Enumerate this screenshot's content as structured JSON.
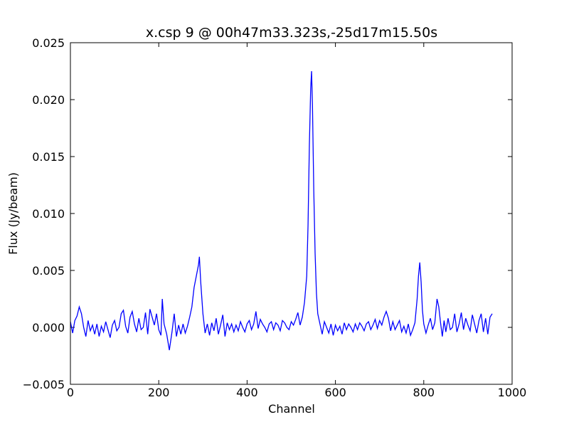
{
  "chart_data": {
    "type": "line",
    "title": "x.csp 9 @ 00h47m33.323s,-25d17m15.50s",
    "x_label": "Channel",
    "y_label": "Flux (Jy/beam)",
    "color": "#0000ff",
    "grid": false,
    "xlim": [
      0,
      1000
    ],
    "xticks": [
      0,
      200,
      400,
      600,
      800,
      1000
    ],
    "ylim": [
      -0.005,
      0.025
    ],
    "yticks": [
      {
        "value": -0.005,
        "label": "−0.005"
      },
      {
        "value": 0,
        "label": "0.000"
      },
      0.005,
      {
        "value": 0.01,
        "label": "0.010"
      },
      0.015,
      {
        "value": 0.02,
        "label": "0.020"
      },
      0.025
    ],
    "x": [
      0,
      5,
      10,
      15,
      20,
      25,
      30,
      35,
      40,
      45,
      50,
      55,
      60,
      65,
      70,
      75,
      80,
      85,
      90,
      95,
      100,
      105,
      110,
      115,
      120,
      125,
      130,
      135,
      140,
      145,
      150,
      155,
      160,
      165,
      170,
      175,
      180,
      185,
      190,
      195,
      200,
      205,
      208,
      212,
      218,
      224,
      230,
      235,
      240,
      245,
      250,
      255,
      260,
      265,
      270,
      275,
      280,
      285,
      290,
      292,
      295,
      300,
      305,
      310,
      315,
      320,
      325,
      330,
      335,
      340,
      345,
      350,
      355,
      360,
      365,
      370,
      375,
      380,
      385,
      390,
      395,
      400,
      405,
      410,
      415,
      420,
      425,
      430,
      435,
      440,
      445,
      450,
      455,
      460,
      465,
      470,
      475,
      480,
      485,
      490,
      495,
      500,
      505,
      510,
      515,
      520,
      525,
      530,
      535,
      538,
      541,
      544,
      546,
      548,
      551,
      554,
      557,
      560,
      565,
      570,
      575,
      580,
      585,
      590,
      595,
      600,
      605,
      610,
      615,
      620,
      625,
      630,
      635,
      640,
      645,
      650,
      655,
      660,
      665,
      670,
      675,
      680,
      685,
      690,
      695,
      700,
      705,
      710,
      715,
      720,
      725,
      730,
      735,
      740,
      745,
      750,
      755,
      760,
      765,
      770,
      775,
      780,
      785,
      788,
      791,
      794,
      797,
      800,
      805,
      810,
      815,
      820,
      825,
      830,
      834,
      838,
      842,
      846,
      850,
      855,
      860,
      865,
      870,
      875,
      880,
      885,
      890,
      895,
      900,
      905,
      910,
      915,
      920,
      925,
      930,
      935,
      940,
      945,
      950,
      955
    ],
    "values": [
      0.0005,
      -0.0005,
      0.0006,
      0.001,
      0.0018,
      0.0012,
      0.0,
      -0.0008,
      0.0006,
      -0.0003,
      0.0002,
      -0.0006,
      0.0003,
      -0.0008,
      0.0001,
      -0.0004,
      0.0005,
      -0.0002,
      -0.0009,
      0.0002,
      0.0006,
      -0.0003,
      0.0,
      0.0012,
      0.0015,
      0.0001,
      -0.0005,
      0.0009,
      0.0014,
      0.0003,
      -0.0004,
      0.0008,
      -0.0002,
      0.0,
      0.0013,
      -0.0006,
      0.0016,
      0.0009,
      0.0002,
      0.0012,
      -0.0002,
      -0.0007,
      0.0025,
      0.0003,
      -0.0006,
      -0.002,
      -0.0004,
      0.0012,
      -0.0008,
      0.0002,
      -0.0006,
      0.0003,
      -0.0005,
      0.0001,
      0.0009,
      0.0018,
      0.0035,
      0.0045,
      0.0055,
      0.0062,
      0.004,
      0.0012,
      -0.0005,
      0.0003,
      -0.0007,
      0.0004,
      -0.0003,
      0.0008,
      -0.0006,
      0.0002,
      0.0011,
      -0.0008,
      0.0004,
      -0.0002,
      0.0003,
      -0.0004,
      0.0002,
      -0.0003,
      0.0005,
      0.0,
      -0.0004,
      0.0003,
      0.0006,
      -0.0002,
      0.0003,
      0.0014,
      -0.0001,
      0.0007,
      0.0003,
      0.0,
      -0.0004,
      0.0003,
      0.0005,
      -0.0002,
      0.0004,
      0.0002,
      -0.0003,
      0.0006,
      0.0004,
      0.0,
      -0.0002,
      0.0005,
      0.0002,
      0.0007,
      0.0013,
      0.0002,
      0.0009,
      0.0022,
      0.0045,
      0.009,
      0.016,
      0.021,
      0.0225,
      0.0195,
      0.012,
      0.0065,
      0.003,
      0.0012,
      0.0003,
      -0.0006,
      0.0005,
      0.0,
      -0.0005,
      0.0003,
      -0.0007,
      0.0002,
      -0.0003,
      0.0001,
      -0.0006,
      0.0004,
      -0.0002,
      0.0003,
      0.0,
      -0.0004,
      0.0003,
      -0.0002,
      0.0004,
      0.0001,
      -0.0003,
      0.0003,
      0.0005,
      -0.0002,
      0.0002,
      0.0007,
      -0.0001,
      0.0006,
      0.0002,
      0.0009,
      0.0014,
      0.0008,
      -0.0003,
      0.0005,
      -0.0002,
      0.0002,
      0.0006,
      -0.0004,
      0.0001,
      -0.0005,
      0.0003,
      -0.0007,
      -0.0002,
      0.0004,
      0.0025,
      0.0045,
      0.0057,
      0.004,
      0.0015,
      0.0003,
      -0.0005,
      0.0002,
      0.0008,
      -0.0002,
      0.0004,
      0.0025,
      0.0018,
      0.0004,
      -0.0008,
      0.0006,
      -0.0004,
      0.0008,
      -0.0002,
      0.0,
      0.0012,
      -0.0004,
      0.0003,
      0.0013,
      -0.0002,
      0.0008,
      0.0002,
      -0.0003,
      0.0011,
      0.0003,
      -0.0005,
      0.0006,
      0.0012,
      -0.0004,
      0.0008,
      -0.0006,
      0.0009,
      0.0012
    ]
  }
}
